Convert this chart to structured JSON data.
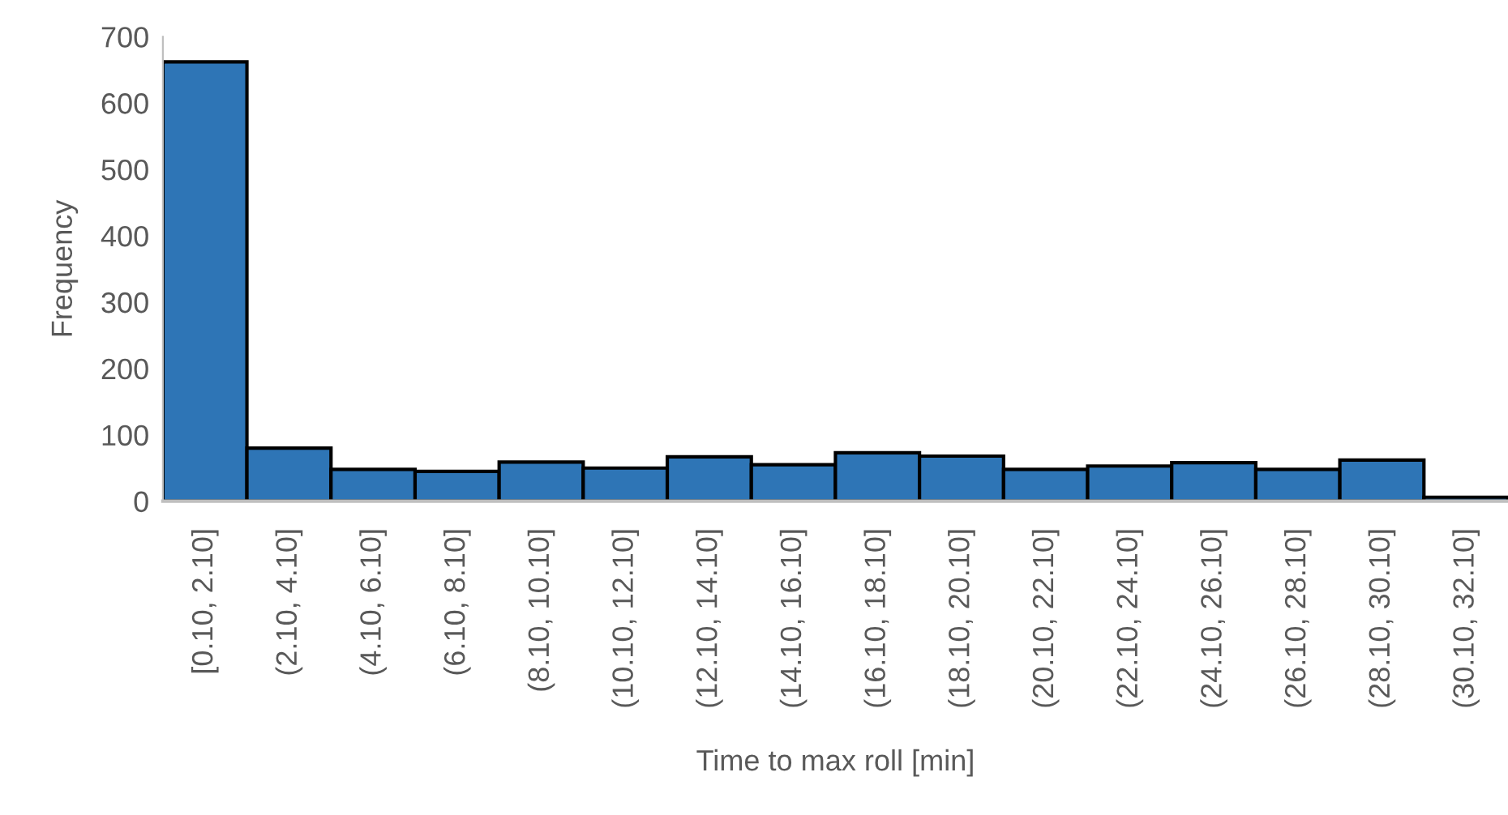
{
  "chart_data": {
    "type": "bar",
    "xlabel": "Time to max roll [min]",
    "ylabel": "Frequency",
    "categories": [
      "[0.10, 2.10]",
      "(2.10, 4.10]",
      "(4.10, 6.10]",
      "(6.10, 8.10]",
      "(8.10, 10.10]",
      "(10.10, 12.10]",
      "(12.10, 14.10]",
      "(14.10, 16.10]",
      "(16.10, 18.10]",
      "(18.10, 20.10]",
      "(20.10, 22.10]",
      "(22.10, 24.10]",
      "(24.10, 26.10]",
      "(26.10, 28.10]",
      "(28.10, 30.10]",
      "(30.10, 32.10]"
    ],
    "values": [
      662,
      80,
      48,
      45,
      59,
      50,
      67,
      55,
      73,
      68,
      48,
      53,
      58,
      48,
      62,
      6
    ],
    "color": "#2e75b6",
    "ylim": [
      0,
      700
    ],
    "yticks": [
      0,
      100,
      200,
      300,
      400,
      500,
      600,
      700
    ],
    "grid": false,
    "legend": false
  }
}
